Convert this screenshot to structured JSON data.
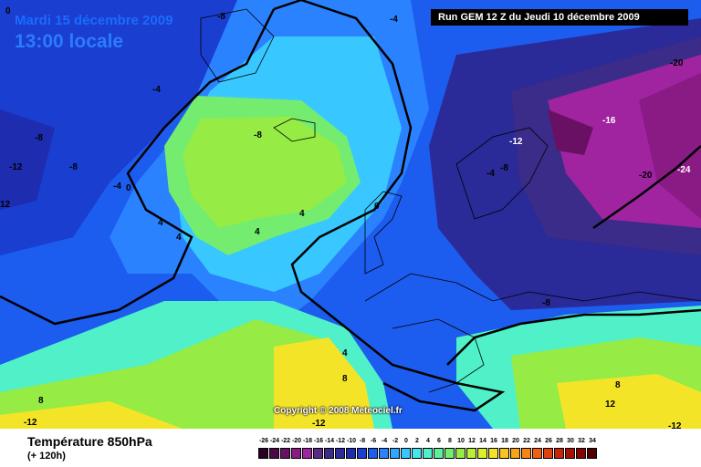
{
  "header": {
    "date": "Mardi 15 décembre 2009",
    "time": "13:00 locale",
    "run": "Run GEM 12 Z du Jeudi 10 décembre 2009"
  },
  "copyright": "Copyright © 2008 Meteociel.fr",
  "footer": {
    "variable": "Température 850hPa",
    "forecast": "(+ 120h)"
  },
  "contour_labels": [
    "-8",
    "-4",
    "-4",
    "-8",
    "-8",
    "-12",
    "-8",
    "-4",
    "0",
    "12",
    "-8",
    "4",
    "4",
    "4",
    "4",
    "0",
    "-4",
    "-8",
    "-12",
    "-16",
    "-20",
    "-20",
    "-24",
    "-8",
    "4",
    "8",
    "8",
    "-12",
    "-12",
    "12",
    "8",
    "-12",
    "0"
  ],
  "legend": {
    "ticks": [
      "-26",
      "-24",
      "-22",
      "-20",
      "-18",
      "-16",
      "-14",
      "-12",
      "-10",
      "-8",
      "-6",
      "-4",
      "-2",
      "0",
      "2",
      "4",
      "6",
      "8",
      "10",
      "12",
      "14",
      "16",
      "18",
      "20",
      "22",
      "24",
      "26",
      "28",
      "30",
      "32",
      "34"
    ],
    "colors": [
      "#2a0026",
      "#4a0846",
      "#6a1064",
      "#8a1a84",
      "#a024a0",
      "#5a2a86",
      "#3a2c88",
      "#2a2a98",
      "#1e2cb0",
      "#1a3ed0",
      "#1c5cee",
      "#2a82ff",
      "#30a6ff",
      "#38c8ff",
      "#44e6f0",
      "#50f0c8",
      "#5cf09c",
      "#74ec70",
      "#96ec44",
      "#baf030",
      "#dcf028",
      "#f4e428",
      "#f8c420",
      "#f8a418",
      "#f88414",
      "#f06010",
      "#e0400c",
      "#c82408",
      "#a81004",
      "#880400",
      "#500000"
    ]
  }
}
